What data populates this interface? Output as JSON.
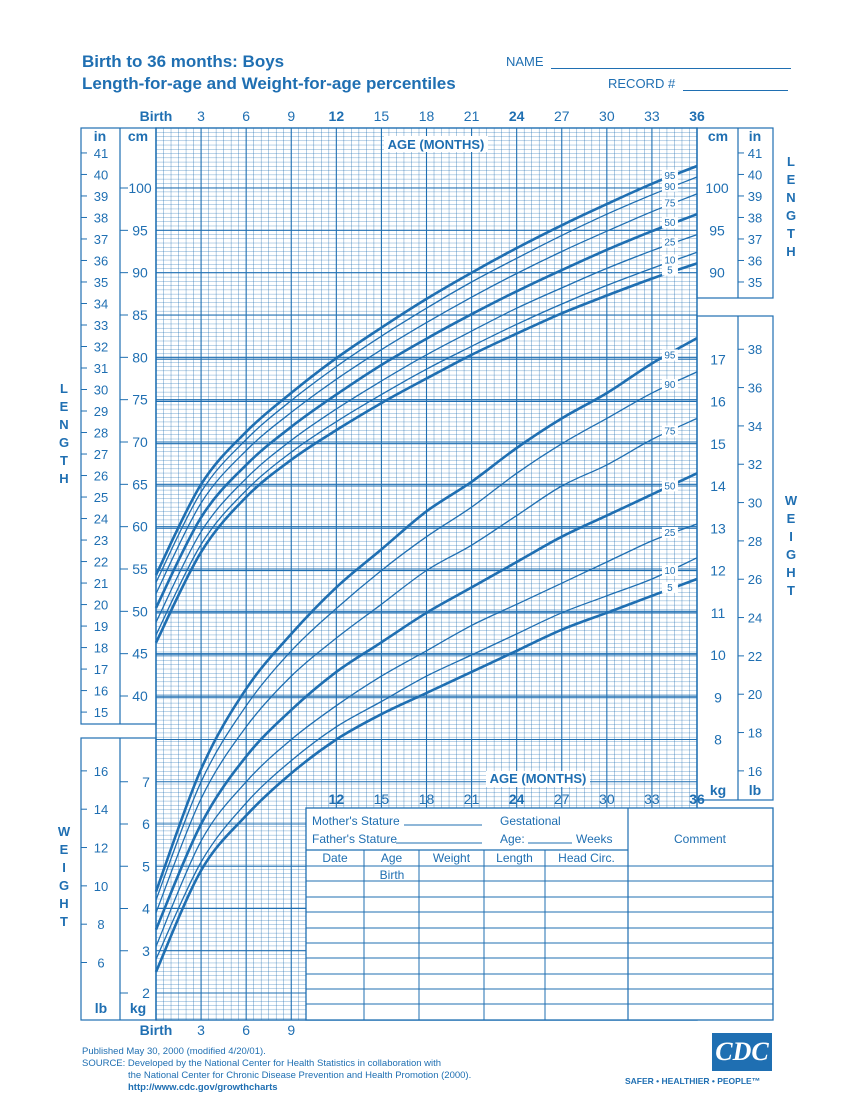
{
  "header": {
    "title_line1": "Birth to 36 months: Boys",
    "title_line2": "Length-for-age and Weight-for-age percentiles",
    "name_label": "NAME",
    "record_label": "RECORD #"
  },
  "chart_data": [
    {
      "type": "line",
      "title": "Length-for-age",
      "xlabel": "AGE (MONTHS)",
      "ylabel": "LENGTH",
      "x_ticks": [
        "Birth",
        "3",
        "6",
        "9",
        "12",
        "15",
        "18",
        "21",
        "24",
        "27",
        "30",
        "33",
        "36"
      ],
      "x": [
        0,
        3,
        6,
        9,
        12,
        15,
        18,
        21,
        24,
        27,
        30,
        33,
        36
      ],
      "xlim": [
        0,
        36
      ],
      "y_cm_ticks": [
        "40",
        "45",
        "50",
        "55",
        "60",
        "65",
        "70",
        "75",
        "80",
        "85",
        "90",
        "95",
        "100"
      ],
      "y_in_ticks": [
        "15",
        "16",
        "17",
        "18",
        "19",
        "20",
        "21",
        "22",
        "23",
        "24",
        "25",
        "26",
        "27",
        "28",
        "29",
        "30",
        "31",
        "32",
        "33",
        "34",
        "35",
        "36",
        "37",
        "38",
        "39",
        "40",
        "41"
      ],
      "ylim_cm": [
        37.6,
        104.0
      ],
      "units": [
        "cm",
        "in"
      ],
      "grid": true,
      "series": [
        {
          "name": "5",
          "values": [
            46.3,
            57.0,
            63.5,
            67.9,
            71.4,
            74.6,
            77.5,
            80.3,
            82.8,
            85.2,
            87.3,
            89.3,
            91.1
          ]
        },
        {
          "name": "10",
          "values": [
            47.2,
            57.9,
            64.3,
            68.8,
            72.4,
            75.6,
            78.6,
            81.3,
            83.9,
            86.3,
            88.5,
            90.5,
            92.4
          ]
        },
        {
          "name": "25",
          "values": [
            48.7,
            59.4,
            65.7,
            70.2,
            73.9,
            77.2,
            80.3,
            83.1,
            85.8,
            88.2,
            90.5,
            92.6,
            94.5
          ]
        },
        {
          "name": "50",
          "values": [
            50.4,
            61.1,
            67.3,
            71.8,
            75.6,
            79.1,
            82.2,
            85.1,
            87.8,
            90.3,
            92.7,
            94.9,
            96.9
          ]
        },
        {
          "name": "75",
          "values": [
            52.1,
            62.8,
            69.0,
            73.5,
            77.4,
            80.9,
            84.1,
            87.1,
            89.9,
            92.5,
            94.9,
            97.2,
            99.3
          ]
        },
        {
          "name": "90",
          "values": [
            53.4,
            64.1,
            70.3,
            74.9,
            78.9,
            82.5,
            85.8,
            88.9,
            91.7,
            94.4,
            96.9,
            99.2,
            101.3
          ]
        },
        {
          "name": "95",
          "values": [
            54.3,
            65.0,
            71.2,
            75.8,
            79.9,
            83.5,
            86.9,
            90.0,
            92.9,
            95.6,
            98.1,
            100.5,
            102.6
          ]
        }
      ]
    },
    {
      "type": "line",
      "title": "Weight-for-age",
      "xlabel": "AGE (MONTHS)",
      "ylabel": "WEIGHT",
      "x_ticks": [
        "Birth",
        "3",
        "6",
        "9",
        "12",
        "15",
        "18",
        "21",
        "24",
        "27",
        "30",
        "33",
        "36"
      ],
      "x": [
        0,
        3,
        6,
        9,
        12,
        15,
        18,
        21,
        24,
        27,
        30,
        33,
        36
      ],
      "xlim": [
        0,
        36
      ],
      "y_kg_ticks_lower": [
        "2",
        "3",
        "4",
        "5",
        "6",
        "7"
      ],
      "y_kg_ticks_upper": [
        "8",
        "9",
        "10",
        "11",
        "12",
        "13",
        "14",
        "15",
        "16",
        "17"
      ],
      "y_lb_ticks_lower": [
        "6",
        "8",
        "10",
        "12",
        "14",
        "16"
      ],
      "y_lb_ticks_upper": [
        "16",
        "18",
        "20",
        "22",
        "24",
        "26",
        "28",
        "30",
        "32",
        "34",
        "36",
        "38"
      ],
      "ylim_kg": [
        1.6,
        17.9
      ],
      "units": [
        "kg",
        "lb"
      ],
      "grid": true,
      "series": [
        {
          "name": "5",
          "values": [
            2.5,
            4.9,
            6.2,
            7.2,
            8.0,
            8.6,
            9.1,
            9.6,
            10.1,
            10.6,
            11.0,
            11.4,
            11.8
          ]
        },
        {
          "name": "10",
          "values": [
            2.8,
            5.1,
            6.5,
            7.5,
            8.3,
            8.9,
            9.5,
            10.0,
            10.5,
            11.0,
            11.4,
            11.8,
            12.3
          ]
        },
        {
          "name": "25",
          "values": [
            3.1,
            5.6,
            7.0,
            8.0,
            8.8,
            9.5,
            10.1,
            10.7,
            11.2,
            11.7,
            12.2,
            12.7,
            13.1
          ]
        },
        {
          "name": "50",
          "values": [
            3.5,
            6.0,
            7.6,
            8.7,
            9.6,
            10.3,
            11.0,
            11.6,
            12.2,
            12.8,
            13.3,
            13.8,
            14.3
          ]
        },
        {
          "name": "75",
          "values": [
            3.9,
            6.6,
            8.3,
            9.5,
            10.4,
            11.2,
            12.0,
            12.6,
            13.3,
            14.0,
            14.5,
            15.1,
            15.6
          ]
        },
        {
          "name": "90",
          "values": [
            4.2,
            7.0,
            8.8,
            10.1,
            11.1,
            12.0,
            12.8,
            13.5,
            14.3,
            15.0,
            15.6,
            16.2,
            16.7
          ]
        },
        {
          "name": "95",
          "values": [
            4.4,
            7.3,
            9.2,
            10.5,
            11.6,
            12.5,
            13.4,
            14.1,
            14.9,
            15.6,
            16.2,
            16.9,
            17.5
          ]
        }
      ]
    }
  ],
  "record_table": {
    "mothers_stature": "Mother's Stature",
    "fathers_stature": "Father's Stature",
    "gestational": "Gestational",
    "age_label": "Age:",
    "weeks": "Weeks",
    "comment": "Comment",
    "columns": [
      "Date",
      "Age",
      "Weight",
      "Length",
      "Head  Circ."
    ],
    "first_row_age": "Birth"
  },
  "footer": {
    "published": "Published May 30, 2000 (modified 4/20/01).",
    "source1": "SOURCE: Developed by the National Center for Health Statistics in collaboration with",
    "source2": "the National Center for Chronic Disease Prevention and Health Promotion (2000).",
    "url": "http://www.cdc.gov/growthcharts",
    "logo": "CDC",
    "tagline": "SAFER • HEALTHIER • PEOPLE™"
  },
  "side_labels": {
    "length": "LENGTH",
    "weight": "WEIGHT"
  },
  "colors": {
    "ink": "#1f6fb2"
  }
}
